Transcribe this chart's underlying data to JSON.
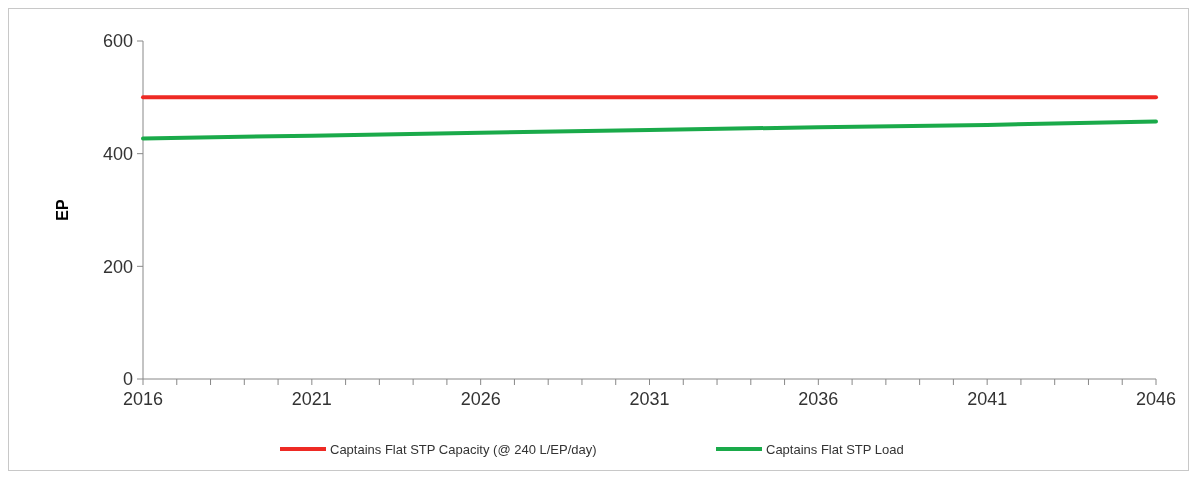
{
  "chart_data": {
    "type": "line",
    "ylabel": "EP",
    "x": [
      2016,
      2021,
      2026,
      2031,
      2036,
      2041,
      2046
    ],
    "series": [
      {
        "name": "Captains Flat STP Capacity (@ 240 L/EP/day)",
        "color": "#ee2a24",
        "values": [
          500,
          500,
          500,
          500,
          500,
          500,
          500
        ]
      },
      {
        "name": "Captains Flat STP Load",
        "color": "#1aaa4a",
        "values": [
          427,
          432,
          437,
          442,
          447,
          451,
          457
        ]
      }
    ],
    "xlim": [
      2016,
      2046
    ],
    "xticks": [
      2016,
      {
        "value": 2017,
        "label": null
      },
      {
        "value": 2018,
        "label": null
      },
      {
        "value": 2019,
        "label": null
      },
      {
        "value": 2020,
        "label": null
      },
      2021,
      {
        "value": 2022,
        "label": null
      },
      {
        "value": 2023,
        "label": null
      },
      {
        "value": 2024,
        "label": null
      },
      {
        "value": 2025,
        "label": null
      },
      2026,
      {
        "value": 2027,
        "label": null
      },
      {
        "value": 2028,
        "label": null
      },
      {
        "value": 2029,
        "label": null
      },
      {
        "value": 2030,
        "label": null
      },
      2031,
      {
        "value": 2032,
        "label": null
      },
      {
        "value": 2033,
        "label": null
      },
      {
        "value": 2034,
        "label": null
      },
      {
        "value": 2035,
        "label": null
      },
      2036,
      {
        "value": 2037,
        "label": null
      },
      {
        "value": 2038,
        "label": null
      },
      {
        "value": 2039,
        "label": null
      },
      {
        "value": 2040,
        "label": null
      },
      2041,
      {
        "value": 2042,
        "label": null
      },
      {
        "value": 2043,
        "label": null
      },
      {
        "value": 2044,
        "label": null
      },
      {
        "value": 2045,
        "label": null
      },
      2046
    ],
    "ylim": [
      0,
      600
    ],
    "yticks": [
      0,
      200,
      400,
      600
    ],
    "grid": false,
    "legend": "bottom",
    "marker": "none",
    "line_style": "solid"
  }
}
